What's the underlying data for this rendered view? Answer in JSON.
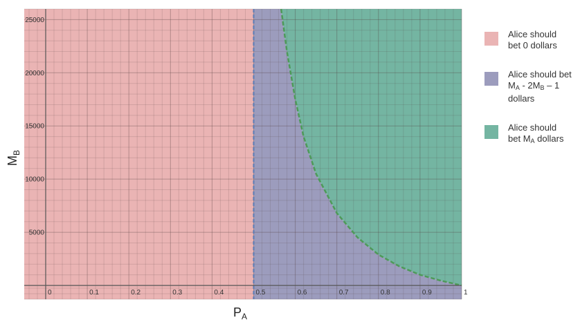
{
  "chart_data": {
    "type": "area",
    "title": "",
    "xlabel": {
      "main": "P",
      "sub": "A"
    },
    "ylabel": {
      "main": "M",
      "sub": "B"
    },
    "xlim": [
      0,
      1
    ],
    "ylim": [
      0,
      26000
    ],
    "x_ticks": [
      "0",
      "0.1",
      "0.2",
      "0.3",
      "0.4",
      "0.5",
      "0.6",
      "0.7",
      "0.8",
      "0.9",
      "1"
    ],
    "y_ticks": [
      "5000",
      "10000",
      "15000",
      "20000",
      "25000"
    ],
    "grid": true,
    "regions": [
      {
        "name": "bet-0",
        "color": "#eab4b4",
        "x_range": [
          0,
          0.5
        ]
      },
      {
        "name": "bet-partial",
        "color": "#9c9cbd",
        "x_range": [
          0.5,
          1
        ],
        "below": "threshold curve"
      },
      {
        "name": "bet-all",
        "color": "#74b5a2",
        "x_range": [
          0.5,
          1
        ],
        "above": "threshold curve"
      }
    ],
    "vertical_boundary": {
      "x": 0.5,
      "color": "#5a7bb5"
    },
    "threshold_curve": {
      "color": "#4e9a59",
      "x": [
        0.566,
        0.58,
        0.6,
        0.62,
        0.65,
        0.7,
        0.75,
        0.8,
        0.85,
        0.9,
        0.95,
        1.0
      ],
      "y": [
        26000,
        22000,
        17500,
        14000,
        10500,
        6800,
        4500,
        2900,
        1800,
        1000,
        450,
        0
      ]
    },
    "legend": [
      {
        "lines": [
          "Alice should",
          "bet 0 dollars"
        ],
        "color": "#eab4b4"
      },
      {
        "lines": [
          "Alice should bet",
          "M_A - 2M_B – 1",
          "dollars"
        ],
        "color": "#9c9cbd"
      },
      {
        "lines": [
          "Alice should",
          "bet M_A dollars"
        ],
        "color": "#74b5a2"
      }
    ],
    "legend_placement": "right"
  }
}
